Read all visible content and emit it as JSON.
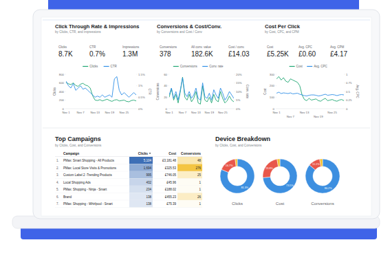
{
  "chart_data": [
    {
      "type": "line",
      "title": "Click Through Rate & Impressions",
      "subtitle": "by Clicks, CTR, and Impressions",
      "categories": [
        "Nov 1",
        null,
        null,
        null,
        null,
        null,
        "Nov 7",
        null,
        null,
        null,
        null,
        null,
        "Nov 13",
        null,
        null,
        null,
        null,
        null,
        "Nov 19",
        null,
        null,
        null,
        null,
        null,
        "Nov 25",
        null,
        null,
        null,
        null,
        null
      ],
      "ylabel": "Clicks",
      "y2label": "CTR",
      "ylim": [
        0,
        800
      ],
      "yticks": [
        0,
        200,
        400,
        600,
        800
      ],
      "y2lim": [
        0,
        1.5
      ],
      "y2ticks": [
        {
          "value": 0,
          "label": "0%"
        },
        {
          "value": 0.5,
          "label": "0.5%"
        },
        {
          "value": 1,
          "label": "1%"
        },
        {
          "value": 1.5,
          "label": "1.5%"
        }
      ],
      "legend": "top",
      "grid": false,
      "series": [
        {
          "name": "Clicks",
          "color": "#1ea672",
          "values": [
            610,
            580,
            560,
            600,
            540,
            520,
            570,
            590,
            550,
            530,
            480,
            300,
            200,
            190,
            210,
            180,
            200,
            220,
            190,
            170,
            200,
            210,
            180,
            190,
            200,
            170,
            160,
            190,
            200,
            180
          ]
        },
        {
          "name": "CTR",
          "color": "#2f8fe6",
          "axis": "y2",
          "values": [
            1.2,
            1.0,
            0.9,
            1.1,
            0.8,
            0.9,
            1.0,
            0.85,
            0.9,
            0.8,
            0.7,
            0.6,
            0.5,
            0.55,
            0.5,
            0.6,
            0.5,
            0.55,
            0.6,
            0.5,
            1.3,
            1.4,
            0.8,
            0.6,
            0.7,
            0.6,
            0.5,
            0.6,
            0.7,
            0.6
          ]
        }
      ]
    },
    {
      "type": "line",
      "title": "Conversions & Cost/Conv.",
      "subtitle": "by Conversions and Cost / Conv",
      "categories": [
        "Nov 1",
        null,
        null,
        null,
        null,
        null,
        "Nov 7",
        null,
        null,
        null,
        null,
        null,
        "Nov 13",
        null,
        null,
        null,
        null,
        null,
        "Nov 19",
        null,
        null,
        null,
        null,
        null,
        "Nov 25",
        null,
        null,
        null,
        null,
        null
      ],
      "ylabel": "Conversions",
      "y2label": "Conv. rate",
      "ylim": [
        0,
        60
      ],
      "yticks": [
        0,
        20,
        40,
        60
      ],
      "y2lim": [
        0,
        20
      ],
      "y2ticks": [
        {
          "value": 0,
          "label": "0%"
        },
        {
          "value": 5,
          "label": "5%"
        },
        {
          "value": 10,
          "label": "10%"
        },
        {
          "value": 15,
          "label": "15%"
        },
        {
          "value": 20,
          "label": "20%"
        }
      ],
      "legend": "top",
      "grid": false,
      "series": [
        {
          "name": "Conversions",
          "color": "#1ea672",
          "values": [
            20,
            35,
            15,
            25,
            10,
            30,
            55,
            20,
            15,
            25,
            12,
            18,
            30,
            10,
            8,
            40,
            15,
            12,
            20,
            10,
            25,
            15,
            12,
            30,
            18,
            10,
            14,
            22,
            15,
            12
          ]
        },
        {
          "name": "Conv. rate",
          "color": "#2f8fe6",
          "axis": "y2",
          "values": [
            8,
            12,
            6,
            10,
            5,
            11,
            18,
            9,
            7,
            10,
            6,
            8,
            12,
            6,
            5,
            15,
            7,
            6,
            9,
            5,
            11,
            8,
            6,
            12,
            9,
            5,
            7,
            10,
            8,
            6
          ]
        }
      ]
    },
    {
      "type": "line",
      "title": "Cost Per Click",
      "subtitle": "by Cost, CPC, and CPM",
      "categories": [
        "Nov 1",
        null,
        null,
        null,
        null,
        null,
        "Nov 7",
        null,
        null,
        null,
        null,
        null,
        "Nov 13",
        null,
        null,
        null,
        null,
        null,
        "Nov 19",
        null,
        null,
        null,
        null,
        null,
        "Nov 25",
        null,
        null,
        null,
        null,
        null
      ],
      "ylabel": "Cost",
      "y2label": "Avg. CPC",
      "ylim": [
        0,
        300
      ],
      "yticks": [
        0,
        100,
        200,
        300
      ],
      "y2lim": [
        0,
        1
      ],
      "y2ticks": [
        0,
        0.25,
        0.5,
        0.75,
        1
      ],
      "legend": "top",
      "grid": false,
      "series": [
        {
          "name": "Cost",
          "color": "#1ea672",
          "values": [
            260,
            280,
            250,
            270,
            240,
            230,
            260,
            250,
            240,
            230,
            200,
            120,
            80,
            70,
            90,
            75,
            80,
            85,
            70,
            65,
            80,
            90,
            70,
            75,
            80,
            70,
            65,
            75,
            80,
            70
          ]
        },
        {
          "name": "Avg. CPC",
          "color": "#2f8fe6",
          "axis": "y2",
          "values": [
            0.45,
            0.48,
            0.44,
            0.46,
            0.45,
            0.44,
            0.46,
            0.43,
            0.44,
            0.45,
            0.42,
            0.4,
            0.38,
            0.37,
            0.39,
            0.4,
            0.4,
            0.39,
            0.37,
            0.38,
            0.4,
            0.42,
            0.39,
            0.4,
            0.41,
            0.4,
            0.38,
            0.4,
            0.41,
            0.4
          ]
        }
      ]
    },
    {
      "type": "pie",
      "title": "Clicks",
      "values": [
        81.3,
        16.7,
        2
      ],
      "colors": [
        "#3d8fe0",
        "#e8574a",
        "#f5c132"
      ],
      "data_labels": true,
      "value_labels": [
        "81.3%",
        "16.7%",
        null
      ]
    },
    {
      "type": "pie",
      "title": "Cost",
      "values": [
        73.5,
        23.8,
        2.7
      ],
      "colors": [
        "#3d8fe0",
        "#e8574a",
        "#f5c132"
      ],
      "data_labels": true,
      "value_labels": [
        "73.5%",
        "23.8%",
        null
      ]
    },
    {
      "type": "pie",
      "title": "Conversions",
      "values": [
        86.2,
        11.1,
        2.7
      ],
      "colors": [
        "#3d8fe0",
        "#e8574a",
        "#f5c132"
      ],
      "data_labels": true,
      "value_labels": [
        "86.2%",
        "11.1%",
        null
      ]
    }
  ],
  "scorecards": [
    [
      {
        "label": "Clicks",
        "value": "8.7K"
      },
      {
        "label": "CTR",
        "value": "0.7%"
      },
      {
        "label": "Impressions",
        "value": "1.3M"
      }
    ],
    [
      {
        "label": "Conversions",
        "value": "378"
      },
      {
        "label": "All conv. value",
        "value": "182.6K"
      },
      {
        "label": "Cost / conv.",
        "value": "£14.03"
      }
    ],
    [
      {
        "label": "Cost",
        "value": "£5.25K"
      },
      {
        "label": "Avg. CPC",
        "value": "£0.60"
      },
      {
        "label": "Avg. CPM",
        "value": "£4.17"
      }
    ]
  ],
  "table": {
    "title": "Top Campaigns",
    "subtitle": "by Clicks, Cost, and Conversions",
    "columns": [
      "Campaign",
      "Clicks",
      "Cost",
      "Conversions"
    ],
    "rows": [
      {
        "rank": "1.",
        "cells": [
          "PMax: Smart Shopping - All Products",
          "5,104",
          "£3,181.48",
          "48"
        ]
      },
      {
        "rank": "2.",
        "cells": [
          "PMax: Local Store Visits & Promotions",
          "1,694",
          "£325.53",
          "276"
        ]
      },
      {
        "rank": "3.",
        "cells": [
          "Custom Label 2 -Trending Products",
          "995",
          "£746.05",
          "25"
        ]
      },
      {
        "rank": "4.",
        "cells": [
          "Local Shopping Ads",
          "432",
          "£45.96",
          "1"
        ]
      },
      {
        "rank": "5.",
        "cells": [
          "PMax: Shopping - Ninja - Smart",
          "234",
          "£188.02",
          "1"
        ]
      },
      {
        "rank": "6.",
        "cells": [
          "Brand",
          "138",
          "£455.23",
          "26"
        ]
      },
      {
        "rank": "7.",
        "cells": [
          "PMax: Shopping - Whirlpool - Smart",
          "138",
          "£75.39",
          "1"
        ]
      }
    ]
  },
  "device_breakdown": {
    "title": "Device Breakdown",
    "subtitle": "by Clicks, Cost, and Conversions"
  }
}
